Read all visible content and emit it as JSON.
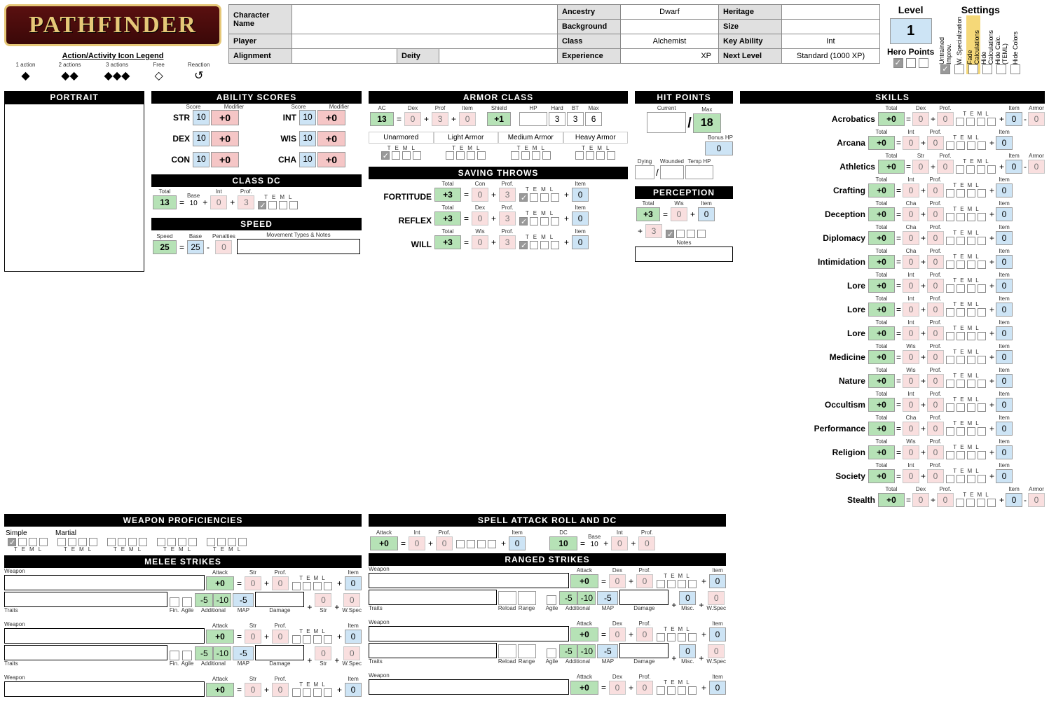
{
  "logo_text": "PATHFINDER",
  "legend_title": "Action/Activity Icon Legend",
  "legend": [
    "1 action",
    "2 actions",
    "3 actions",
    "Free",
    "Reaction"
  ],
  "header": {
    "character_name_lbl": "Character Name",
    "character_name": "",
    "player_lbl": "Player",
    "player": "",
    "alignment_lbl": "Alignment",
    "alignment": "",
    "deity_lbl": "Deity",
    "deity": "",
    "ancestry_lbl": "Ancestry",
    "ancestry": "Dwarf",
    "heritage_lbl": "Heritage",
    "heritage": "",
    "background_lbl": "Background",
    "background": "",
    "size_lbl": "Size",
    "size": "",
    "class_lbl": "Class",
    "class": "Alchemist",
    "key_ability_lbl": "Key Ability",
    "key_ability": "Int",
    "experience_lbl": "Experience",
    "experience": "XP",
    "next_level_lbl": "Next Level",
    "next_level": "Standard (1000 XP)"
  },
  "level_lbl": "Level",
  "level": "1",
  "hero_points_lbl": "Hero Points",
  "settings_lbl": "Settings",
  "settings_cols": [
    "Untrained Improv.",
    "W. Specialization",
    "Fade Calculations",
    "Hide Calculations",
    "Hide Calc. (TEML)",
    "Hide Colors"
  ],
  "settings_checked": [
    true,
    false,
    false,
    false,
    false,
    false
  ],
  "settings_highlight": 2,
  "portrait_hdr": "PORTRAIT",
  "ability_hdr": "ABILITY SCORES",
  "ability_sub": [
    "Score",
    "Modifier",
    "Score",
    "Modifier"
  ],
  "abilities": [
    {
      "n": "STR",
      "s": "10",
      "m": "+0"
    },
    {
      "n": "INT",
      "s": "10",
      "m": "+0"
    },
    {
      "n": "DEX",
      "s": "10",
      "m": "+0"
    },
    {
      "n": "WIS",
      "s": "10",
      "m": "+0"
    },
    {
      "n": "CON",
      "s": "10",
      "m": "+0"
    },
    {
      "n": "CHA",
      "s": "10",
      "m": "+0"
    }
  ],
  "classdc_hdr": "CLASS DC",
  "classdc": {
    "total_lbl": "Total",
    "total": "13",
    "base_lbl": "Base",
    "base": "10",
    "int_lbl": "Int",
    "int": "0",
    "prof_lbl": "Prof.",
    "prof": "3",
    "teml": [
      "T",
      "E",
      "M",
      "L"
    ]
  },
  "speed_hdr": "SPEED",
  "speed": {
    "speed_lbl": "Speed",
    "speed": "25",
    "base_lbl": "Base",
    "base": "25",
    "pen_lbl": "Penalties",
    "pen": "0",
    "notes_lbl": "Movement Types & Notes"
  },
  "ac_hdr": "ARMOR CLASS",
  "ac": {
    "ac_lbl": "AC",
    "ac": "13",
    "dex_lbl": "Dex",
    "dex": "0",
    "prof_lbl": "Prof",
    "prof": "3",
    "item_lbl": "Item",
    "item": "0",
    "shield_lbl": "Shield",
    "shield": "+1",
    "hp_lbl": "HP",
    "hard_lbl": "Hard",
    "bt_lbl": "BT",
    "max_lbl": "Max",
    "hp": "",
    "hard": "3",
    "bt": "3",
    "max": "6"
  },
  "armor_types": [
    "Unarmored",
    "Light Armor",
    "Medium Armor",
    "Heavy Armor"
  ],
  "teml": [
    "T",
    "E",
    "M",
    "L"
  ],
  "hp_hdr": "HIT POINTS",
  "hp": {
    "current_lbl": "Current",
    "max_lbl": "Max",
    "max": "18",
    "bonus_lbl": "Bonus HP",
    "bonus": "0",
    "dying_lbl": "Dying",
    "wounded_lbl": "Wounded",
    "temp_lbl": "Temp HP"
  },
  "saves_hdr": "SAVING THROWS",
  "saves": [
    {
      "n": "FORTITUDE",
      "total": "+3",
      "ab_lbl": "Con",
      "ab": "0",
      "prof": "3",
      "item": "0"
    },
    {
      "n": "REFLEX",
      "total": "+3",
      "ab_lbl": "Dex",
      "ab": "0",
      "prof": "3",
      "item": "0"
    },
    {
      "n": "WILL",
      "total": "+3",
      "ab_lbl": "Wis",
      "ab": "0",
      "prof": "3",
      "item": "0"
    }
  ],
  "save_cols": [
    "Total",
    "",
    "Prof.",
    "T",
    "E",
    "M",
    "L",
    "Item"
  ],
  "perception_hdr": "PERCEPTION",
  "perception": {
    "total_lbl": "Total",
    "total": "+3",
    "wis_lbl": "Wis",
    "wis": "0",
    "item_lbl": "Item",
    "item": "0",
    "prof": "3",
    "notes_lbl": "Notes"
  },
  "wp_hdr": "WEAPON PROFICIENCIES",
  "wp_groups": [
    "Simple",
    "Martial",
    "",
    "",
    ""
  ],
  "melee_hdr": "MELEE STRIKES",
  "ranged_hdr": "RANGED STRIKES",
  "strike_labels": {
    "weapon": "Weapon",
    "attack": "Attack",
    "str": "Str",
    "dex": "Dex",
    "prof": "Prof.",
    "item": "Item",
    "fin": "Fin.",
    "agile": "Agile",
    "additional": "Additional",
    "map": "MAP",
    "damage": "Damage",
    "wspec": "W.Spec",
    "reload": "Reload",
    "range": "Range",
    "misc": "Misc.",
    "traits": "Traits"
  },
  "strike_vals": {
    "attack": "+0",
    "ab": "0",
    "prof": "0",
    "item": "0",
    "m5": "-5",
    "m10": "-10",
    "map": "-5",
    "zero": "0"
  },
  "spell_hdr": "SPELL ATTACK ROLL AND DC",
  "spell": {
    "attack_lbl": "Attack",
    "attack": "+0",
    "int_lbl": "Int",
    "int": "0",
    "prof_lbl": "Prof.",
    "prof": "0",
    "item_lbl": "Item",
    "item": "0",
    "dc_lbl": "DC",
    "dc": "10",
    "base_lbl": "Base",
    "base": "10"
  },
  "skills_hdr": "SKILLS",
  "skill_cols": [
    "Total",
    "",
    "Prof.",
    "T",
    "E",
    "M",
    "L",
    "Item",
    "Armor"
  ],
  "skills": [
    {
      "n": "Acrobatics",
      "ab": "Dex",
      "armor": true
    },
    {
      "n": "Arcana",
      "ab": "Int",
      "armor": false
    },
    {
      "n": "Athletics",
      "ab": "Str",
      "armor": true
    },
    {
      "n": "Crafting",
      "ab": "Int",
      "armor": false
    },
    {
      "n": "Deception",
      "ab": "Cha",
      "armor": false
    },
    {
      "n": "Diplomacy",
      "ab": "Cha",
      "armor": false
    },
    {
      "n": "Intimidation",
      "ab": "Cha",
      "armor": false
    },
    {
      "n": "Lore",
      "ab": "Int",
      "armor": false
    },
    {
      "n": "Lore",
      "ab": "Int",
      "armor": false
    },
    {
      "n": "Lore",
      "ab": "Int",
      "armor": false
    },
    {
      "n": "Medicine",
      "ab": "Wis",
      "armor": false
    },
    {
      "n": "Nature",
      "ab": "Wis",
      "armor": false
    },
    {
      "n": "Occultism",
      "ab": "Int",
      "armor": false
    },
    {
      "n": "Performance",
      "ab": "Cha",
      "armor": false
    },
    {
      "n": "Religion",
      "ab": "Wis",
      "armor": false
    },
    {
      "n": "Society",
      "ab": "Int",
      "armor": false
    },
    {
      "n": "Stealth",
      "ab": "Dex",
      "armor": true
    }
  ],
  "skill_vals": {
    "total": "+0",
    "ab": "0",
    "prof": "0",
    "item": "0",
    "armor": "0"
  },
  "colors": {
    "green": "#b6e2b6",
    "pink": "#f5c6c6",
    "blue": "#cde4f5",
    "hdr_grey": "#e0e0e0",
    "highlight": "#f5d878"
  }
}
